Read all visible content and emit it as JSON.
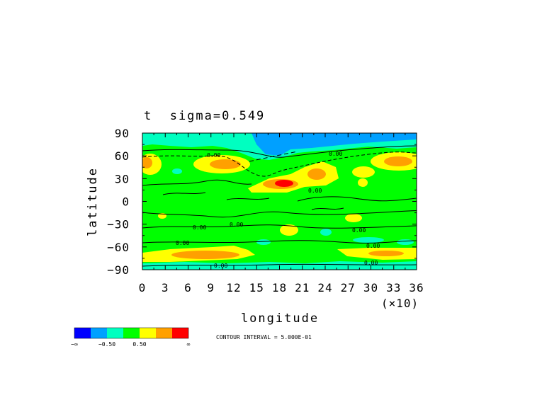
{
  "chart_data": {
    "type": "heatmap",
    "title": "t  sigma=0.549",
    "xlabel": "longitude",
    "ylabel": "latitude",
    "x_multiplier_label": "(×10)",
    "x_ticks": [
      "0",
      "3",
      "6",
      "9",
      "12",
      "15",
      "18",
      "21",
      "24",
      "27",
      "30",
      "33",
      "36"
    ],
    "y_ticks": [
      "90",
      "60",
      "30",
      "0",
      "−30",
      "−60",
      "−90"
    ],
    "xlim": [
      0,
      36
    ],
    "ylim": [
      -90,
      90
    ],
    "contour_interval_text": "CONTOUR INTERVAL = 5.000E-01",
    "contour_labels": [
      "0.00",
      "0.00",
      "0.00",
      "0.00",
      "0.00",
      "0.00",
      "0.00",
      "0.00",
      "0.00",
      "0.00"
    ],
    "legend": {
      "colors": [
        "#0000ff",
        "#00a0ff",
        "#00ffc0",
        "#00ff00",
        "#ffff00",
        "#ffa000",
        "#ff0000"
      ],
      "labels": [
        "−∞",
        "−0.50",
        "0.50",
        "∞"
      ]
    },
    "field": {
      "background_level": "0 (green)",
      "features": [
        {
          "lon": 18.5,
          "lat": 26,
          "level": "high",
          "color": "red"
        },
        {
          "lon": 22.5,
          "lat": 40,
          "level": "high",
          "color": "orange"
        },
        {
          "lon": 11,
          "lat": 50,
          "level": "high",
          "color": "orange"
        },
        {
          "lon": 34,
          "lat": 55,
          "level": "high",
          "color": "orange"
        },
        {
          "lon": 0.5,
          "lat": 55,
          "level": "high",
          "color": "orange"
        },
        {
          "lon": 7,
          "lat": -68,
          "level": "high",
          "color": "yellow"
        },
        {
          "lon": 33,
          "lat": -66,
          "level": "high",
          "color": "yellow"
        },
        {
          "lon": 19,
          "lat": 83,
          "level": "low",
          "color": "blue"
        }
      ]
    }
  }
}
